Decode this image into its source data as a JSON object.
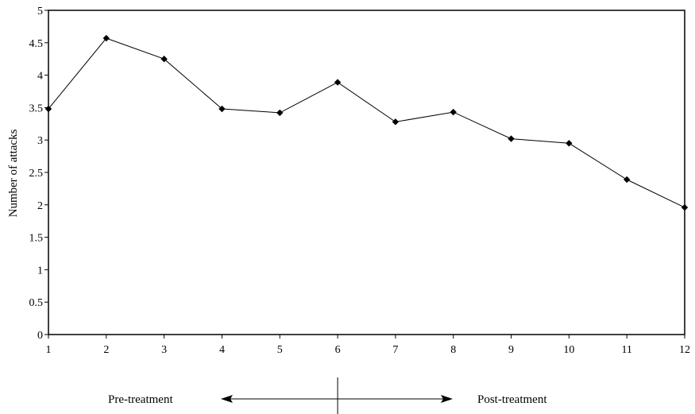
{
  "chart_data": {
    "type": "line",
    "title": "",
    "xlabel": "",
    "ylabel": "Number of attacks",
    "xlim": [
      1,
      12
    ],
    "ylim": [
      0,
      5
    ],
    "x_ticks": [
      1,
      2,
      3,
      4,
      5,
      6,
      7,
      8,
      9,
      10,
      11,
      12
    ],
    "y_ticks": [
      0,
      0.5,
      1,
      1.5,
      2,
      2.5,
      3,
      3.5,
      4,
      4.5,
      5
    ],
    "x_tick_labels": [
      "1",
      "2",
      "3",
      "4",
      "5",
      "6",
      "7",
      "8",
      "9",
      "10",
      "11",
      "12"
    ],
    "y_tick_labels": [
      "0",
      "0.5",
      "1",
      "1.5",
      "2",
      "2.5",
      "3",
      "3.5",
      "4",
      "4.5",
      "5"
    ],
    "grid": false,
    "legend": "none",
    "series": [
      {
        "color": "#000000",
        "marker": "diamond",
        "x": [
          1,
          2,
          3,
          4,
          5,
          6,
          7,
          8,
          9,
          10,
          11,
          12
        ],
        "values": [
          3.48,
          4.57,
          4.25,
          3.48,
          3.42,
          3.89,
          3.28,
          3.43,
          3.02,
          2.95,
          2.39,
          1.96
        ]
      }
    ],
    "annotations": {
      "pre_label": "Pre-treatment",
      "post_label": "Post-treatment",
      "divider_at_x": 6
    }
  }
}
